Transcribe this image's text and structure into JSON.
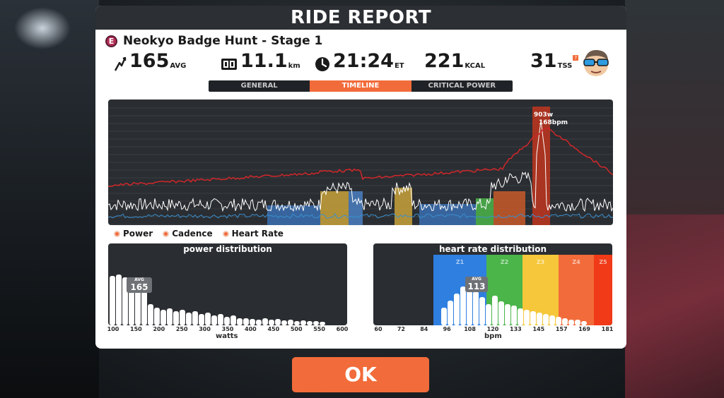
{
  "header": {
    "title": "RIDE REPORT"
  },
  "ride": {
    "badge": "E",
    "title": "Neokyo Badge Hunt - Stage 1"
  },
  "stats": {
    "power": {
      "value": "165",
      "unit": "AVG"
    },
    "distance": {
      "value": "11.1",
      "unit": "km"
    },
    "time": {
      "value": "21:24",
      "unit": "ET"
    },
    "calories": {
      "value": "221",
      "unit": "KCAL"
    },
    "tss": {
      "value": "31",
      "unit": "TSS",
      "info": "?"
    }
  },
  "tabs": [
    {
      "label": "GENERAL",
      "active": false
    },
    {
      "label": "TIMELINE",
      "active": true
    },
    {
      "label": "CRITICAL POWER",
      "active": false
    }
  ],
  "timeline": {
    "peak_power_label": "903w",
    "peak_hr_label": "168bpm"
  },
  "legend": [
    {
      "label": "Power"
    },
    {
      "label": "Cadence"
    },
    {
      "label": "Heart Rate"
    }
  ],
  "power_distribution": {
    "title": "power distribution",
    "avg_label": "AVG",
    "avg_value": "165",
    "x_ticks": [
      "100",
      "150",
      "200",
      "250",
      "300",
      "350",
      "400",
      "450",
      "500",
      "550",
      "600"
    ],
    "x_title": "watts"
  },
  "hr_distribution": {
    "title": "heart rate distribution",
    "avg_label": "AVG",
    "avg_value": "113",
    "zones": [
      "Z1",
      "Z2",
      "Z3",
      "Z4",
      "Z5"
    ],
    "zone_colors": [
      "#2f7fe0",
      "#4bb54a",
      "#f6c73a",
      "#f26b3a",
      "#f03a18"
    ],
    "x_ticks": [
      "60",
      "72",
      "84",
      "96",
      "108",
      "120",
      "133",
      "145",
      "157",
      "169",
      "181"
    ],
    "x_title": "bpm"
  },
  "ok_button": {
    "label": "OK"
  },
  "colors": {
    "accent": "#f26b3a",
    "hr_line": "#d0272a",
    "panel": "#2a2d31"
  }
}
